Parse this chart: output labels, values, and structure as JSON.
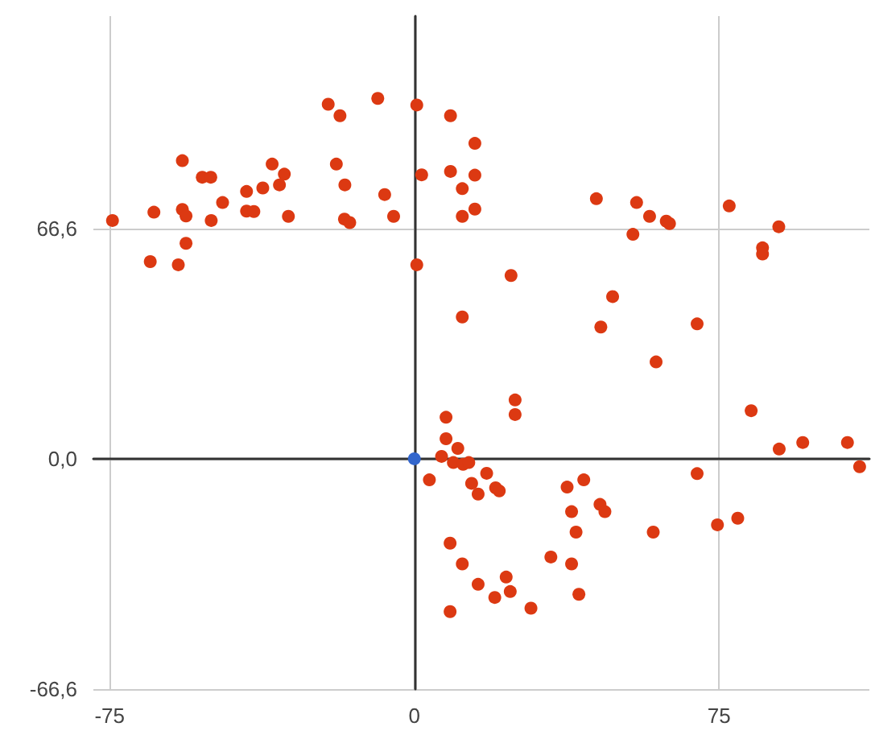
{
  "chart_data": {
    "type": "scatter",
    "xlim": [
      -79,
      112
    ],
    "ylim": [
      -66.6,
      128
    ],
    "xticks": [
      -75,
      0,
      75
    ],
    "yticks": [
      {
        "value": -66.6,
        "label": "-66,6"
      },
      {
        "value": 0,
        "label": "0,0"
      },
      {
        "value": 66.6,
        "label": "66,6"
      }
    ],
    "grid": true,
    "marker": "circle",
    "series": [
      {
        "color": "#dc3912",
        "x": [
          -21.2,
          -18.3,
          -9.0,
          0.6,
          -57.1,
          -52.2,
          -50.1,
          -35.0,
          -32.0,
          -33.2,
          -37.3,
          -41.3,
          -47.2,
          -19.2,
          -17.1,
          -7.3,
          -5.1,
          1.8,
          -74.3,
          -64.1,
          -57.1,
          -56.2,
          -50.0,
          -41.3,
          -39.5,
          -31.0,
          -17.2,
          -15.9,
          -56.2,
          -65.0,
          -58.1,
          0.6,
          8.9,
          14.9,
          8.9,
          14.9,
          11.8,
          14.9,
          11.8,
          44.8,
          54.7,
          57.9,
          53.8,
          23.8,
          48.8,
          45.9,
          11.8,
          59.5,
          24.8,
          24.8,
          7.8,
          7.8,
          10.7,
          6.7,
          9.6,
          12.0,
          13.4,
          17.8,
          14.1,
          15.7,
          20.0,
          20.9,
          3.7,
          62.0,
          62.8,
          77.5,
          89.7,
          85.7,
          85.7,
          69.6,
          82.9,
          89.8,
          95.6,
          106.6,
          109.6,
          69.6,
          74.6,
          79.6,
          58.8,
          37.6,
          41.7,
          38.7,
          45.7,
          46.9,
          39.8,
          33.6,
          38.7,
          40.5,
          28.7,
          23.6,
          22.6,
          19.8,
          15.7,
          11.8,
          8.8,
          8.8
        ],
        "values": [
          102.5,
          99.2,
          104.2,
          102.3,
          86.2,
          81.4,
          81.4,
          85.2,
          82.3,
          79.2,
          78.3,
          77.3,
          74.1,
          85.2,
          79.2,
          76.4,
          70.1,
          82.1,
          68.9,
          71.3,
          72.1,
          70.2,
          68.9,
          71.6,
          71.5,
          70.1,
          69.3,
          68.3,
          62.3,
          57.0,
          56.1,
          56.1,
          99.2,
          91.2,
          83.1,
          82.0,
          78.1,
          72.2,
          70.1,
          75.2,
          74.1,
          70.1,
          64.9,
          53.0,
          46.9,
          38.1,
          41.0,
          28.0,
          17.0,
          12.8,
          12.0,
          5.8,
          3.0,
          0.7,
          -1.1,
          -1.6,
          -1.1,
          -4.2,
          -7.1,
          -10.2,
          -8.4,
          -9.3,
          -6.1,
          68.7,
          68.0,
          73.1,
          67.1,
          61.0,
          59.2,
          39.0,
          13.9,
          2.8,
          4.7,
          4.7,
          -2.3,
          -4.3,
          -19.1,
          -17.2,
          -21.2,
          -8.2,
          -6.1,
          -15.3,
          -13.2,
          -15.3,
          -21.2,
          -28.4,
          -30.4,
          -39.2,
          -43.2,
          -38.4,
          -34.2,
          -40.1,
          -36.3,
          -30.4,
          -24.4,
          -44.2
        ]
      },
      {
        "color": "#3366cc",
        "x": [
          0
        ],
        "values": [
          0
        ]
      }
    ]
  }
}
